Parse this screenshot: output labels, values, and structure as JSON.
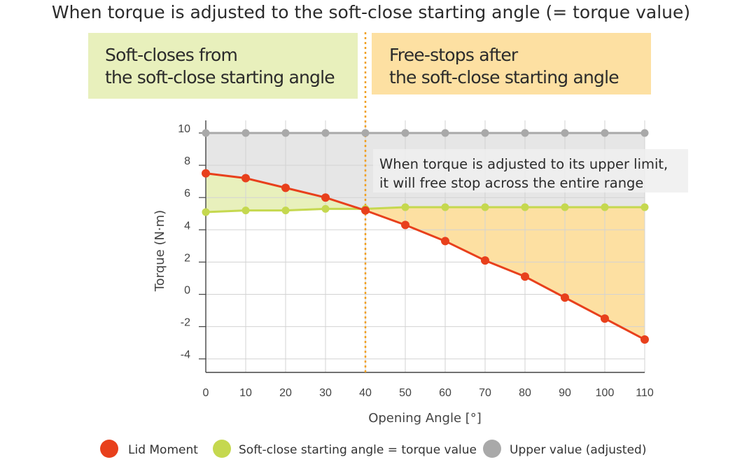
{
  "chart_data": {
    "type": "line",
    "title": "When torque is adjusted to the soft-close starting angle (= torque value)",
    "zones": [
      {
        "lines": [
          "Soft-closes from",
          "the soft-close starting angle"
        ],
        "color": "#e8f0bc"
      },
      {
        "lines": [
          "Free-stops after",
          "the soft-close starting angle"
        ],
        "color": "#fde0a2"
      }
    ],
    "annotation": {
      "lines": [
        "When torque is adjusted to its upper limit,",
        "it will free stop across the entire range"
      ]
    },
    "xlabel": "Opening Angle [°]",
    "ylabel": "Torque (N·m)",
    "x": [
      0,
      10,
      20,
      30,
      40,
      50,
      60,
      70,
      80,
      90,
      100,
      110
    ],
    "x_tick_labels": [
      "0",
      "10",
      "20",
      "30",
      "40",
      "50",
      "60",
      "70",
      "80",
      "90",
      "100",
      "110"
    ],
    "y_ticks": [
      10,
      8,
      6,
      4,
      2,
      0,
      -2,
      -4
    ],
    "y_tick_labels": [
      "10",
      "8",
      "6",
      "4",
      "2",
      "0",
      "-2",
      "-4"
    ],
    "xlim": [
      0,
      110
    ],
    "ylim": [
      -4.5,
      10.2
    ],
    "grid": true,
    "threshold_x": 40,
    "series": [
      {
        "name": "Lid Moment",
        "color": "#e8401c",
        "values": [
          7.5,
          7.2,
          6.6,
          6.0,
          5.2,
          4.3,
          3.3,
          2.1,
          1.1,
          -0.2,
          -1.5,
          -2.8
        ]
      },
      {
        "name": "Soft-close starting angle = torque value",
        "color": "#c5d84f",
        "values": [
          5.1,
          5.2,
          5.2,
          5.3,
          5.3,
          5.4,
          5.4,
          5.4,
          5.4,
          5.4,
          5.4,
          5.4
        ]
      },
      {
        "name": "Upper value (adjusted)",
        "color": "#a9a9a9",
        "values": [
          10,
          10,
          10,
          10,
          10,
          10,
          10,
          10,
          10,
          10,
          10,
          10
        ]
      }
    ],
    "legend": {
      "position": "bottom"
    }
  }
}
